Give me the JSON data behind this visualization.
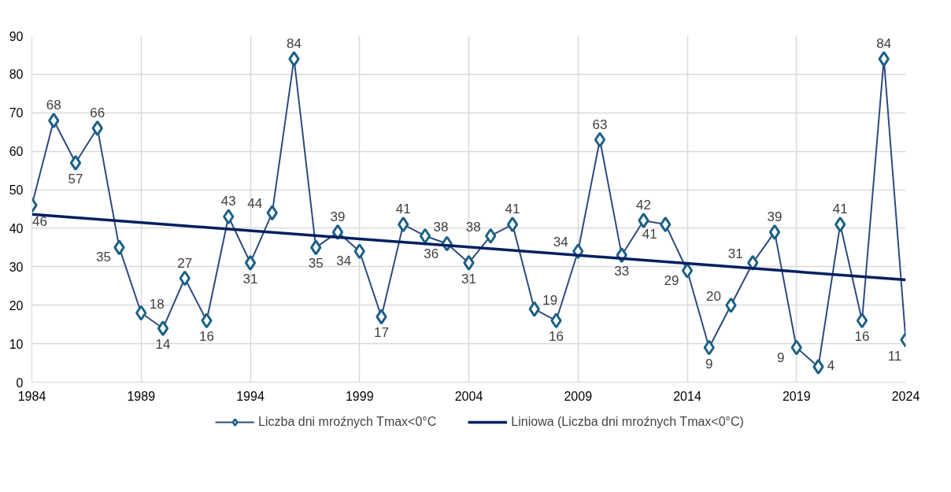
{
  "chart_data": {
    "type": "line",
    "x": [
      1984,
      1985,
      1986,
      1987,
      1988,
      1989,
      1990,
      1991,
      1992,
      1993,
      1994,
      1995,
      1996,
      1997,
      1998,
      1999,
      2000,
      2001,
      2002,
      2003,
      2004,
      2005,
      2006,
      2007,
      2008,
      2009,
      2010,
      2011,
      2012,
      2013,
      2014,
      2015,
      2016,
      2017,
      2018,
      2019,
      2020,
      2021,
      2022,
      2023,
      2024
    ],
    "series": [
      {
        "name": "Liczba dni mroźnych Tmax<0°C",
        "color": "#2e4a7d",
        "marker": "diamond",
        "data_labels": true,
        "values": [
          46,
          68,
          57,
          66,
          35,
          18,
          14,
          27,
          16,
          43,
          31,
          44,
          84,
          35,
          39,
          34,
          17,
          41,
          38,
          36,
          31,
          38,
          41,
          19,
          16,
          34,
          63,
          33,
          42,
          41,
          29,
          9,
          20,
          31,
          39,
          9,
          4,
          41,
          16,
          84,
          11
        ]
      },
      {
        "name": "Liniowa (Liczba dni mroźnych Tmax<0°C)",
        "type": "line",
        "color": "#002060",
        "marker": "none",
        "x": [
          1984,
          2024
        ],
        "values": [
          43.6,
          26.6
        ]
      }
    ],
    "xlim": [
      1984,
      2024
    ],
    "xticks": [
      1984,
      1989,
      1994,
      1999,
      2004,
      2009,
      2014,
      2019,
      2024
    ],
    "ylim": [
      0,
      90
    ],
    "yticks": [
      0,
      10,
      20,
      30,
      40,
      50,
      60,
      70,
      80,
      90
    ],
    "grid": true,
    "legend": "bottom",
    "line_style": "solid"
  }
}
